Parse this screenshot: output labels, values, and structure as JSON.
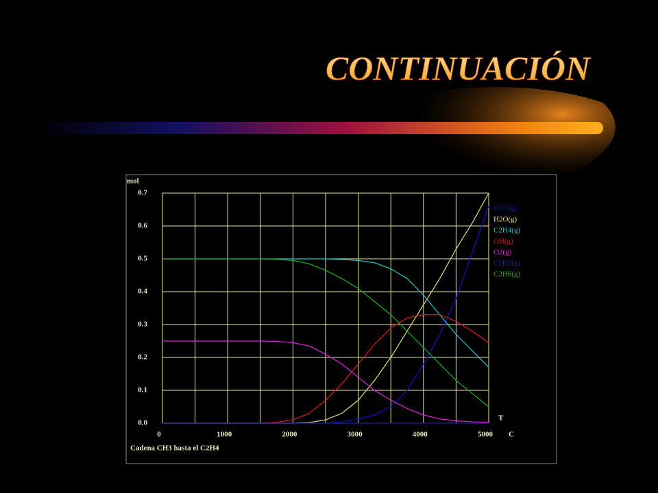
{
  "title": "CONTINUACIÓN",
  "chart_data": {
    "type": "line",
    "y_axis_label": "mol",
    "x_axis_label": "C",
    "x_axis_var": "T",
    "caption": "Cadena CH3 hasta el C2H4",
    "x": [
      0,
      250,
      500,
      750,
      1000,
      1250,
      1500,
      1750,
      2000,
      2250,
      2500,
      2750,
      3000,
      3250,
      3500,
      3750,
      4000,
      4250,
      4500,
      4750,
      5000
    ],
    "series": [
      {
        "name": "CH3(g)",
        "color": "#1010c8",
        "values": [
          0,
          0,
          0,
          0,
          0,
          0,
          0,
          0,
          0,
          0,
          0,
          0.004,
          0.012,
          0.025,
          0.05,
          0.1,
          0.18,
          0.27,
          0.38,
          0.52,
          0.66
        ]
      },
      {
        "name": "H2O(g)",
        "color": "#e8e070",
        "values": [
          0,
          0,
          0,
          0,
          0,
          0,
          0,
          0,
          0,
          0.002,
          0.01,
          0.03,
          0.07,
          0.13,
          0.2,
          0.28,
          0.36,
          0.44,
          0.53,
          0.61,
          0.7
        ]
      },
      {
        "name": "C2H4(g)",
        "color": "#20c8c8",
        "values": [
          0.5,
          0.5,
          0.5,
          0.5,
          0.5,
          0.5,
          0.5,
          0.5,
          0.5,
          0.5,
          0.5,
          0.498,
          0.495,
          0.488,
          0.47,
          0.44,
          0.39,
          0.33,
          0.27,
          0.22,
          0.17
        ]
      },
      {
        "name": "OH(g)",
        "color": "#e01818",
        "values": [
          0,
          0,
          0,
          0,
          0,
          0,
          0,
          0.003,
          0.01,
          0.03,
          0.07,
          0.12,
          0.18,
          0.24,
          0.29,
          0.32,
          0.33,
          0.33,
          0.31,
          0.28,
          0.245
        ]
      },
      {
        "name": "O2(g)",
        "color": "#e020e0",
        "values": [
          0.25,
          0.25,
          0.25,
          0.25,
          0.25,
          0.25,
          0.25,
          0.249,
          0.245,
          0.235,
          0.21,
          0.18,
          0.14,
          0.1,
          0.07,
          0.045,
          0.025,
          0.013,
          0.007,
          0.004,
          0.003
        ]
      },
      {
        "name": "C2H5(g)",
        "color": "#2020a0",
        "values": [
          0,
          0,
          0,
          0,
          0,
          0,
          0,
          0,
          0,
          0,
          0,
          0,
          0,
          0,
          0,
          0,
          0,
          0,
          0,
          0,
          0
        ]
      },
      {
        "name": "C2H6(g)",
        "color": "#20b020",
        "values": [
          0.5,
          0.5,
          0.5,
          0.5,
          0.5,
          0.5,
          0.5,
          0.499,
          0.495,
          0.485,
          0.465,
          0.44,
          0.41,
          0.37,
          0.33,
          0.28,
          0.23,
          0.18,
          0.13,
          0.09,
          0.05
        ]
      }
    ],
    "xlim": [
      0,
      5000
    ],
    "ylim": [
      0,
      0.7
    ],
    "xticks": [
      0,
      1000,
      2000,
      3000,
      4000,
      5000
    ],
    "x_minor_ticks": [
      500,
      1500,
      2500,
      3500,
      4500
    ],
    "yticks": [
      {
        "value": 0,
        "label": "0.0"
      },
      0.1,
      0.2,
      0.3,
      0.4,
      0.5,
      0.6,
      0.7
    ],
    "grid": true,
    "grid_color": "#e8e8a0"
  }
}
